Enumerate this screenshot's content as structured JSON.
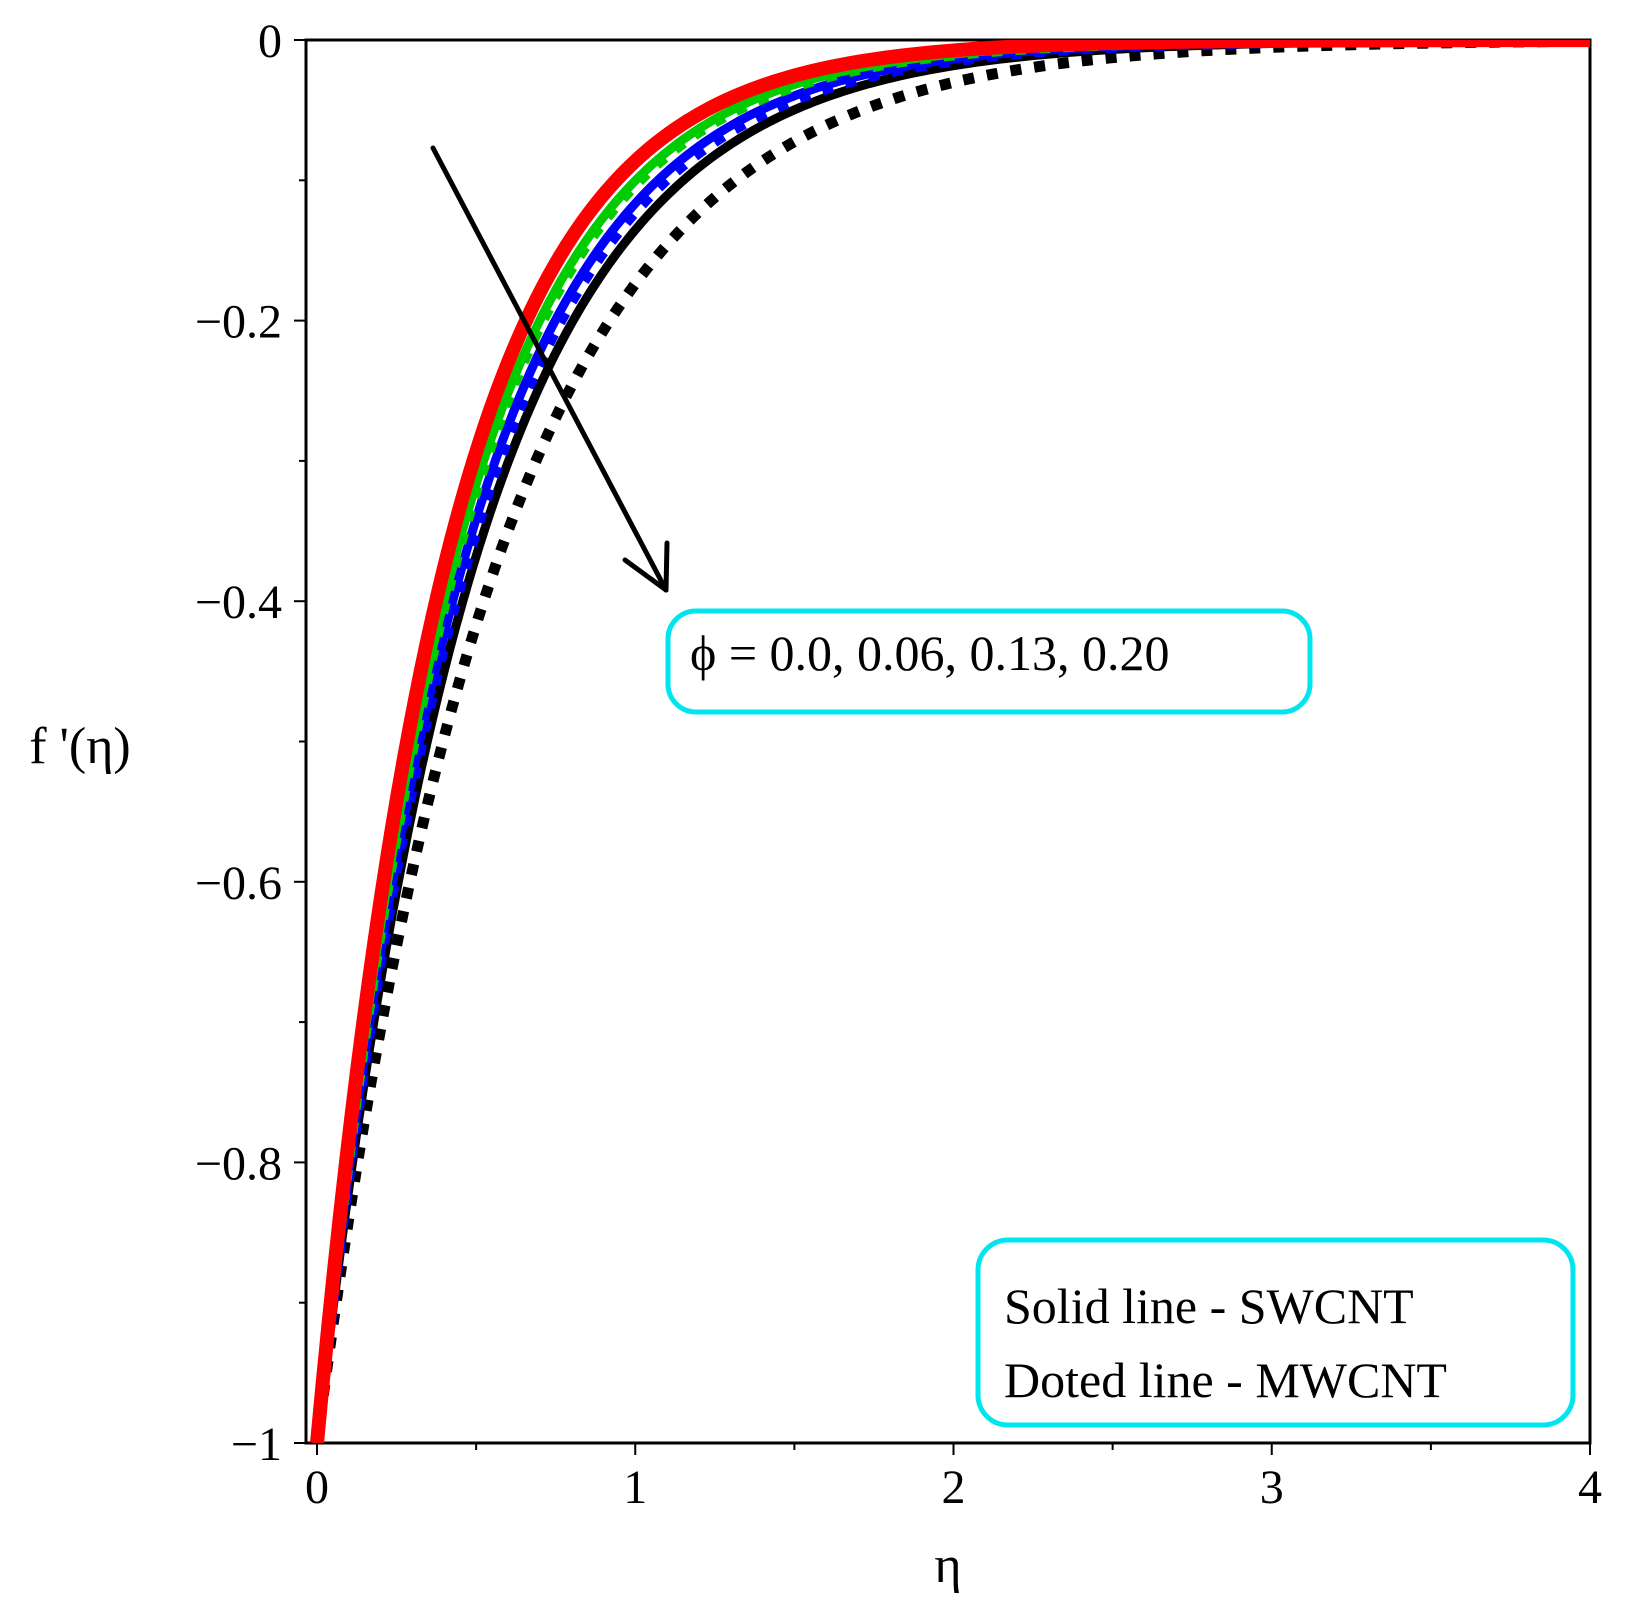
{
  "chart_data": {
    "type": "line",
    "xlabel": "η",
    "ylabel": "f '(η)",
    "xlim": [
      0,
      4
    ],
    "ylim": [
      -1,
      0
    ],
    "x_ticks": [
      "0",
      "1",
      "2",
      "3",
      "4"
    ],
    "y_ticks": [
      "0",
      "−0.2",
      "−0.4",
      "−0.6",
      "−0.8",
      "−1"
    ],
    "annotation": "ϕ = 0.0, 0.06, 0.13, 0.20",
    "legend_lines": [
      "Solid line - SWCNT",
      "Doted line - MWCNT"
    ],
    "legend_position": "bottom-right",
    "series": [
      {
        "name": "SWCNT ϕ=0.0",
        "style": "solid",
        "color": "#ff0000",
        "decay": 2.45,
        "x": [
          0,
          0.1,
          0.2,
          0.3,
          0.4,
          0.5,
          0.6,
          0.7,
          0.8,
          1.0,
          1.2,
          1.5,
          2.0,
          2.5,
          3.0,
          3.5,
          4.0
        ],
        "y": [
          -1,
          -0.78,
          -0.61,
          -0.48,
          -0.38,
          -0.29,
          -0.23,
          -0.18,
          -0.14,
          -0.086,
          -0.053,
          -0.025,
          -0.007,
          -0.002,
          -0.001,
          0,
          0
        ]
      },
      {
        "name": "MWCNT ϕ=0.0",
        "style": "dotted",
        "color": "#ff0000",
        "decay": 2.45,
        "x": [
          0,
          0.1,
          0.2,
          0.3,
          0.4,
          0.5,
          0.6,
          0.7,
          0.8,
          1.0,
          1.2,
          1.5,
          2.0,
          2.5,
          3.0,
          3.5,
          4.0
        ],
        "y": [
          -1,
          -0.78,
          -0.61,
          -0.48,
          -0.38,
          -0.29,
          -0.23,
          -0.18,
          -0.14,
          -0.086,
          -0.053,
          -0.025,
          -0.007,
          -0.002,
          -0.001,
          0,
          0
        ]
      },
      {
        "name": "SWCNT ϕ=0.06",
        "style": "solid",
        "color": "#00cc00",
        "decay": 2.3,
        "x": [
          0,
          0.1,
          0.2,
          0.3,
          0.4,
          0.5,
          0.6,
          0.7,
          0.8,
          1.0,
          1.2,
          1.5,
          2.0,
          2.5,
          3.0,
          3.5,
          4.0
        ],
        "y": [
          -1,
          -0.79,
          -0.63,
          -0.5,
          -0.4,
          -0.32,
          -0.25,
          -0.2,
          -0.16,
          -0.1,
          -0.063,
          -0.032,
          -0.01,
          -0.003,
          -0.001,
          0,
          0
        ]
      },
      {
        "name": "MWCNT ϕ=0.06",
        "style": "dotted",
        "color": "#00cc00",
        "decay": 2.27,
        "x": [
          0,
          0.1,
          0.2,
          0.3,
          0.4,
          0.5,
          0.6,
          0.7,
          0.8,
          1.0,
          1.2,
          1.5,
          2.0,
          2.5,
          3.0,
          3.5,
          4.0
        ],
        "y": [
          -1,
          -0.8,
          -0.64,
          -0.51,
          -0.4,
          -0.32,
          -0.26,
          -0.2,
          -0.16,
          -0.1,
          -0.066,
          -0.033,
          -0.011,
          -0.003,
          -0.001,
          0,
          0
        ]
      },
      {
        "name": "SWCNT ϕ=0.13",
        "style": "solid",
        "color": "#0000ff",
        "decay": 2.15,
        "x": [
          0,
          0.1,
          0.2,
          0.3,
          0.4,
          0.5,
          0.6,
          0.7,
          0.8,
          1.0,
          1.2,
          1.5,
          2.0,
          2.5,
          3.0,
          3.5,
          4.0
        ],
        "y": [
          -1,
          -0.81,
          -0.65,
          -0.52,
          -0.42,
          -0.34,
          -0.28,
          -0.22,
          -0.18,
          -0.12,
          -0.076,
          -0.04,
          -0.014,
          -0.005,
          -0.002,
          -0.001,
          0
        ]
      },
      {
        "name": "MWCNT ϕ=0.13",
        "style": "dotted",
        "color": "#0000ff",
        "decay": 2.1,
        "x": [
          0,
          0.1,
          0.2,
          0.3,
          0.4,
          0.5,
          0.6,
          0.7,
          0.8,
          1.0,
          1.2,
          1.5,
          2.0,
          2.5,
          3.0,
          3.5,
          4.0
        ],
        "y": [
          -1,
          -0.81,
          -0.66,
          -0.53,
          -0.43,
          -0.35,
          -0.28,
          -0.23,
          -0.19,
          -0.12,
          -0.08,
          -0.043,
          -0.015,
          -0.005,
          -0.002,
          -0.001,
          0
        ]
      },
      {
        "name": "SWCNT ϕ=0.20",
        "style": "solid",
        "color": "#000000",
        "decay": 2.0,
        "x": [
          0,
          0.1,
          0.2,
          0.3,
          0.4,
          0.5,
          0.6,
          0.7,
          0.8,
          1.0,
          1.2,
          1.5,
          2.0,
          2.5,
          3.0,
          3.5,
          4.0
        ],
        "y": [
          -1,
          -0.82,
          -0.67,
          -0.55,
          -0.45,
          -0.37,
          -0.3,
          -0.25,
          -0.2,
          -0.14,
          -0.091,
          -0.05,
          -0.018,
          -0.007,
          -0.002,
          -0.001,
          0
        ]
      },
      {
        "name": "MWCNT ϕ=0.20",
        "style": "dotted",
        "color": "#000000",
        "decay": 1.75,
        "x": [
          0,
          0.1,
          0.2,
          0.3,
          0.4,
          0.5,
          0.6,
          0.7,
          0.8,
          1.0,
          1.2,
          1.5,
          2.0,
          2.5,
          3.0,
          3.5,
          4.0
        ],
        "y": [
          -1,
          -0.84,
          -0.7,
          -0.59,
          -0.5,
          -0.42,
          -0.35,
          -0.29,
          -0.25,
          -0.17,
          -0.12,
          -0.072,
          -0.03,
          -0.013,
          -0.005,
          -0.002,
          -0.001
        ]
      }
    ]
  }
}
